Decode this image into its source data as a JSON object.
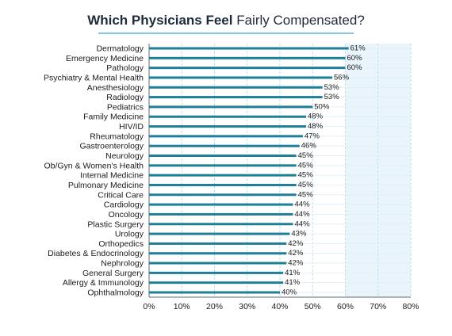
{
  "chart_data": {
    "type": "bar",
    "orientation": "horizontal",
    "title_bold": "Which Physicians Feel",
    "title_rest": "Fairly Compensated?",
    "categories": [
      "Dermatology",
      "Emergency Medicine",
      "Pathology",
      "Psychiatry & Mental Health",
      "Anesthesiology",
      "Radiology",
      "Pediatrics",
      "Family Medicine",
      "HIV/ID",
      "Rheumatology",
      "Gastroenterology",
      "Neurology",
      "Ob/Gyn & Women's Health",
      "Internal Medicine",
      "Pulmonary Medicine",
      "Critical Care",
      "Cardiology",
      "Oncology",
      "Plastic Surgery",
      "Urology",
      "Orthopedics",
      "Diabetes & Endocrinology",
      "Nephrology",
      "General Surgery",
      "Allergy & Immunology",
      "Ophthalmology"
    ],
    "values": [
      61,
      60,
      60,
      56,
      53,
      53,
      50,
      48,
      48,
      47,
      46,
      45,
      45,
      45,
      45,
      45,
      44,
      44,
      44,
      43,
      42,
      42,
      42,
      41,
      41,
      40
    ],
    "value_labels": [
      "61%",
      "60%",
      "60%",
      "56%",
      "53%",
      "53%",
      "50%",
      "48%",
      "48%",
      "47%",
      "46%",
      "45%",
      "45%",
      "45%",
      "45%",
      "45%",
      "44%",
      "44%",
      "44%",
      "43%",
      "42%",
      "42%",
      "42%",
      "41%",
      "41%",
      "40%"
    ],
    "xlim": [
      0,
      80
    ],
    "x_ticks": [
      "0%",
      "10%",
      "20%",
      "30%",
      "40%",
      "50%",
      "60%",
      "70%",
      "80%"
    ],
    "grid": true,
    "bar_color": "#1f7e98",
    "highlight_band_color": "#eaf5fb",
    "gridline_color": "#b9dff3"
  }
}
